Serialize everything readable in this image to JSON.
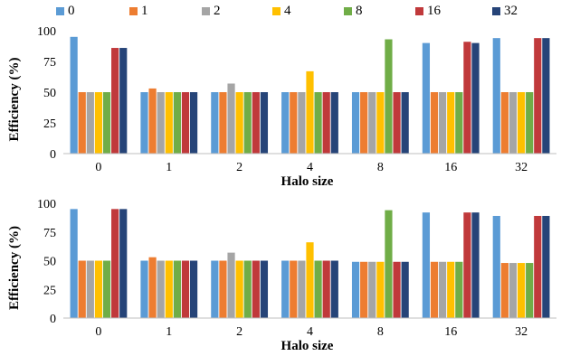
{
  "chart_data": [
    {
      "type": "bar",
      "categories": [
        "0",
        "1",
        "2",
        "4",
        "8",
        "16",
        "32"
      ],
      "xlabel": "Halo size",
      "ylabel": "Efficiency (%)",
      "ylim": [
        0,
        100
      ],
      "yticks": [
        0,
        25,
        50,
        75,
        100
      ],
      "grid": false,
      "series": [
        {
          "name": "0",
          "values": [
            95,
            50,
            50,
            50,
            50,
            90,
            94
          ]
        },
        {
          "name": "1",
          "values": [
            50,
            53,
            50,
            50,
            50,
            50,
            50
          ]
        },
        {
          "name": "2",
          "values": [
            50,
            50,
            57,
            50,
            50,
            50,
            50
          ]
        },
        {
          "name": "4",
          "values": [
            50,
            50,
            50,
            67,
            50,
            50,
            50
          ]
        },
        {
          "name": "8",
          "values": [
            50,
            50,
            50,
            50,
            93,
            50,
            50
          ]
        },
        {
          "name": "16",
          "values": [
            86,
            50,
            50,
            50,
            50,
            91,
            94
          ]
        },
        {
          "name": "32",
          "values": [
            86,
            50,
            50,
            50,
            50,
            90,
            94
          ]
        }
      ]
    },
    {
      "type": "bar",
      "categories": [
        "0",
        "1",
        "2",
        "4",
        "8",
        "16",
        "32"
      ],
      "xlabel": "Halo size",
      "ylabel": "Efficiency (%)",
      "ylim": [
        0,
        100
      ],
      "yticks": [
        0,
        25,
        50,
        75,
        100
      ],
      "grid": false,
      "series": [
        {
          "name": "0",
          "values": [
            95,
            50,
            50,
            50,
            49,
            92,
            89
          ]
        },
        {
          "name": "1",
          "values": [
            50,
            53,
            50,
            50,
            49,
            49,
            48
          ]
        },
        {
          "name": "2",
          "values": [
            50,
            50,
            57,
            50,
            49,
            49,
            48
          ]
        },
        {
          "name": "4",
          "values": [
            50,
            50,
            50,
            66,
            49,
            49,
            48
          ]
        },
        {
          "name": "8",
          "values": [
            50,
            50,
            50,
            50,
            94,
            49,
            48
          ]
        },
        {
          "name": "16",
          "values": [
            95,
            50,
            50,
            50,
            49,
            92,
            89
          ]
        },
        {
          "name": "32",
          "values": [
            95,
            50,
            50,
            50,
            49,
            92,
            89
          ]
        }
      ]
    }
  ],
  "legend": {
    "placement": "top",
    "entries": [
      {
        "label": "0",
        "color": "#5B9BD5"
      },
      {
        "label": "1",
        "color": "#ED7D31"
      },
      {
        "label": "2",
        "color": "#A5A5A5"
      },
      {
        "label": "4",
        "color": "#FFC000"
      },
      {
        "label": "8",
        "color": "#70AD47"
      },
      {
        "label": "16",
        "color": "#C0393B"
      },
      {
        "label": "32",
        "color": "#264478"
      }
    ]
  }
}
